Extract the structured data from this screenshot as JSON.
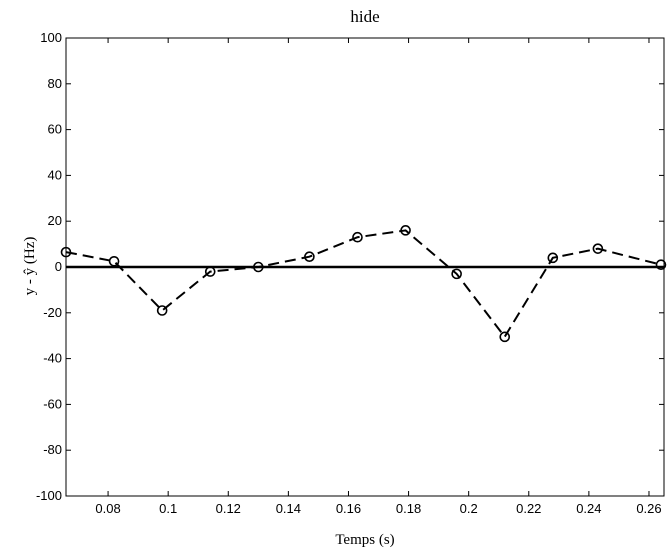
{
  "chart_data": {
    "type": "line",
    "title": "hide",
    "xlabel": "Temps (s)",
    "ylabel": "y - ŷ (Hz)",
    "xlim": [
      0.066,
      0.265
    ],
    "ylim": [
      -100,
      100
    ],
    "xticks": [
      0.08,
      0.1,
      0.12,
      0.14,
      0.16,
      0.18,
      0.2,
      0.22,
      0.24,
      0.26
    ],
    "xtick_labels": [
      "0.08",
      "0.1",
      "0.12",
      "0.14",
      "0.16",
      "0.18",
      "0.2",
      "0.22",
      "0.24",
      "0.26"
    ],
    "yticks": [
      -100,
      -80,
      -60,
      -40,
      -20,
      0,
      20,
      40,
      60,
      80,
      100
    ],
    "ytick_labels": [
      "-100",
      "-80",
      "-60",
      "-40",
      "-20",
      "0",
      "20",
      "40",
      "60",
      "80",
      "100"
    ],
    "grid": false,
    "reference_line_y": 0,
    "series": [
      {
        "line_style": "dashed",
        "marker": "circle",
        "color": "#000000",
        "x": [
          0.066,
          0.082,
          0.098,
          0.114,
          0.13,
          0.147,
          0.163,
          0.179,
          0.196,
          0.212,
          0.228,
          0.243,
          0.264
        ],
        "y": [
          6.5,
          2.5,
          -19,
          -2,
          0,
          4.5,
          13,
          16,
          -3,
          -30.5,
          4,
          8,
          1
        ]
      }
    ]
  }
}
